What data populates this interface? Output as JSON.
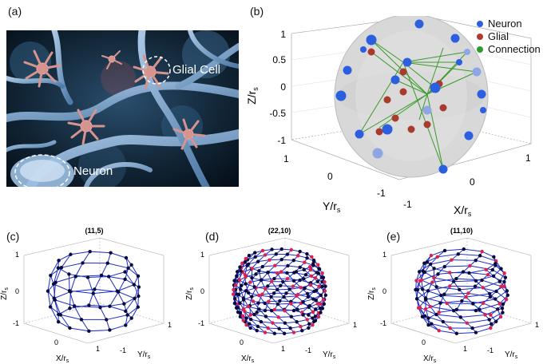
{
  "panels": {
    "a": {
      "label": "(a)",
      "annotations": {
        "glial": "Glial Cell",
        "neuron": "Neuron"
      }
    },
    "b": {
      "label": "(b)",
      "legend": [
        {
          "name": "Neuron",
          "color": "#1f3fbf"
        },
        {
          "name": "Glial",
          "color": "#a83a2e"
        },
        {
          "name": "Connection",
          "color": "#2e9a2e"
        }
      ],
      "zlabel": "Z/r",
      "zlabel_sub": "s",
      "xlabel": "X/r",
      "xlabel_sub": "s",
      "ylabel": "Y/r",
      "ylabel_sub": "s",
      "zticks": [
        "1",
        "0.5",
        "0",
        "-0.5",
        "-1"
      ],
      "xticks": [
        "1",
        "0",
        "-1"
      ],
      "yticks": [
        "1",
        "0",
        "-1"
      ]
    },
    "c": {
      "label": "(c)",
      "title": "(11,5)"
    },
    "d": {
      "label": "(d)",
      "title": "(22,10)"
    },
    "e": {
      "label": "(e)",
      "title": "(11,10)"
    },
    "small_axes": {
      "zlabel": "Z/r",
      "xlabel": "X/r",
      "ylabel": "Y/r",
      "sub": "s",
      "zticks": [
        "1",
        "0",
        "-1"
      ],
      "xticks": [
        "0",
        "1"
      ],
      "yticks": [
        "1",
        "-1"
      ]
    }
  },
  "chart_data": [
    {
      "type": "scatter",
      "title": "",
      "panel": "b",
      "series": [
        {
          "name": "Neuron",
          "color": "#1f3fbf"
        },
        {
          "name": "Glial",
          "color": "#a83a2e"
        },
        {
          "name": "Connection",
          "color": "#2e9a2e"
        }
      ],
      "xlim": [
        -1,
        1
      ],
      "ylim": [
        -1,
        1
      ],
      "zlim": [
        -1,
        1
      ]
    },
    {
      "type": "scatter",
      "panel": "c",
      "title": "(11,5)",
      "rings": 5,
      "nodes_per_ring": 11,
      "colors": [
        "#0a0a3a"
      ]
    },
    {
      "type": "scatter",
      "panel": "d",
      "title": "(22,10)",
      "rings": 10,
      "nodes_per_ring": 22,
      "colors": [
        "#0a0a3a",
        "#e0204a"
      ]
    },
    {
      "type": "scatter",
      "panel": "e",
      "title": "(11,10)",
      "rings": 10,
      "nodes_per_ring": 11,
      "colors": [
        "#0a0a3a",
        "#e0204a"
      ]
    }
  ]
}
